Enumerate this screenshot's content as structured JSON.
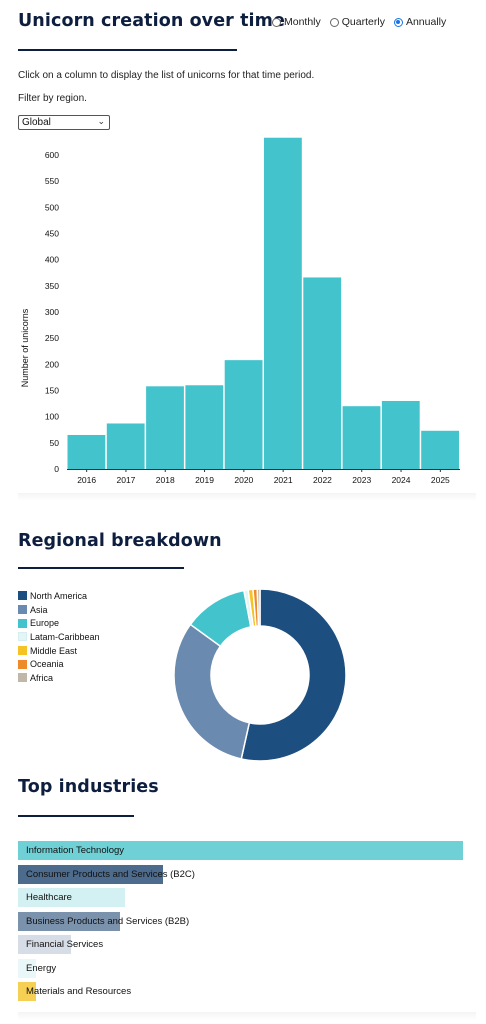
{
  "header": {
    "title": "Unicorn creation over time",
    "radio_options": [
      {
        "label": "Monthly",
        "checked": false
      },
      {
        "label": "Quarterly",
        "checked": false
      },
      {
        "label": "Annually",
        "checked": true
      }
    ],
    "instruction": "Click on a column to display the list of unicorns for that time period.",
    "filter_label": "Filter by region.",
    "region_select_value": "Global"
  },
  "chart_data": [
    {
      "type": "bar",
      "title": "Unicorn creation over time",
      "ylabel": "Number of unicorns",
      "xlabel": "",
      "categories": [
        "2016",
        "2017",
        "2018",
        "2019",
        "2020",
        "2021",
        "2022",
        "2023",
        "2024",
        "2025"
      ],
      "values": [
        65,
        87,
        158,
        160,
        208,
        633,
        366,
        120,
        130,
        73
      ],
      "ylim": [
        0,
        650
      ],
      "yticks": [
        0,
        50,
        100,
        150,
        200,
        250,
        300,
        350,
        400,
        450,
        500,
        550,
        600
      ],
      "color": "#43c3cc"
    },
    {
      "type": "pie",
      "title": "Regional breakdown",
      "labels": [
        "North America",
        "Asia",
        "Europe",
        "Latam-Caribbean",
        "Middle East",
        "Oceania",
        "Africa"
      ],
      "values": [
        53.5,
        31.5,
        12.0,
        0.8,
        0.9,
        0.8,
        0.5
      ],
      "colors": [
        "#1c4e80",
        "#6a8aaf",
        "#43c3cc",
        "#e3f5f6",
        "#f6c324",
        "#ef8a2b",
        "#bfb7a8"
      ]
    },
    {
      "type": "bar",
      "title": "Top industries",
      "orientation": "horizontal",
      "categories": [
        "Information Technology",
        "Consumer Products and Services (B2C)",
        "Healthcare",
        "Business Products and Services (B2B)",
        "Financial Services",
        "Energy",
        "Materials and Resources"
      ],
      "values": [
        100,
        32.5,
        24,
        23,
        12,
        4,
        4
      ],
      "colors": [
        "#6fd1d6",
        "#4d6b8d",
        "#d3f1f2",
        "#7b92ad",
        "#d6dde6",
        "#eaf7f8",
        "#f6cf55"
      ]
    }
  ],
  "sections": {
    "regional_title": "Regional breakdown",
    "industries_title": "Top industries"
  }
}
